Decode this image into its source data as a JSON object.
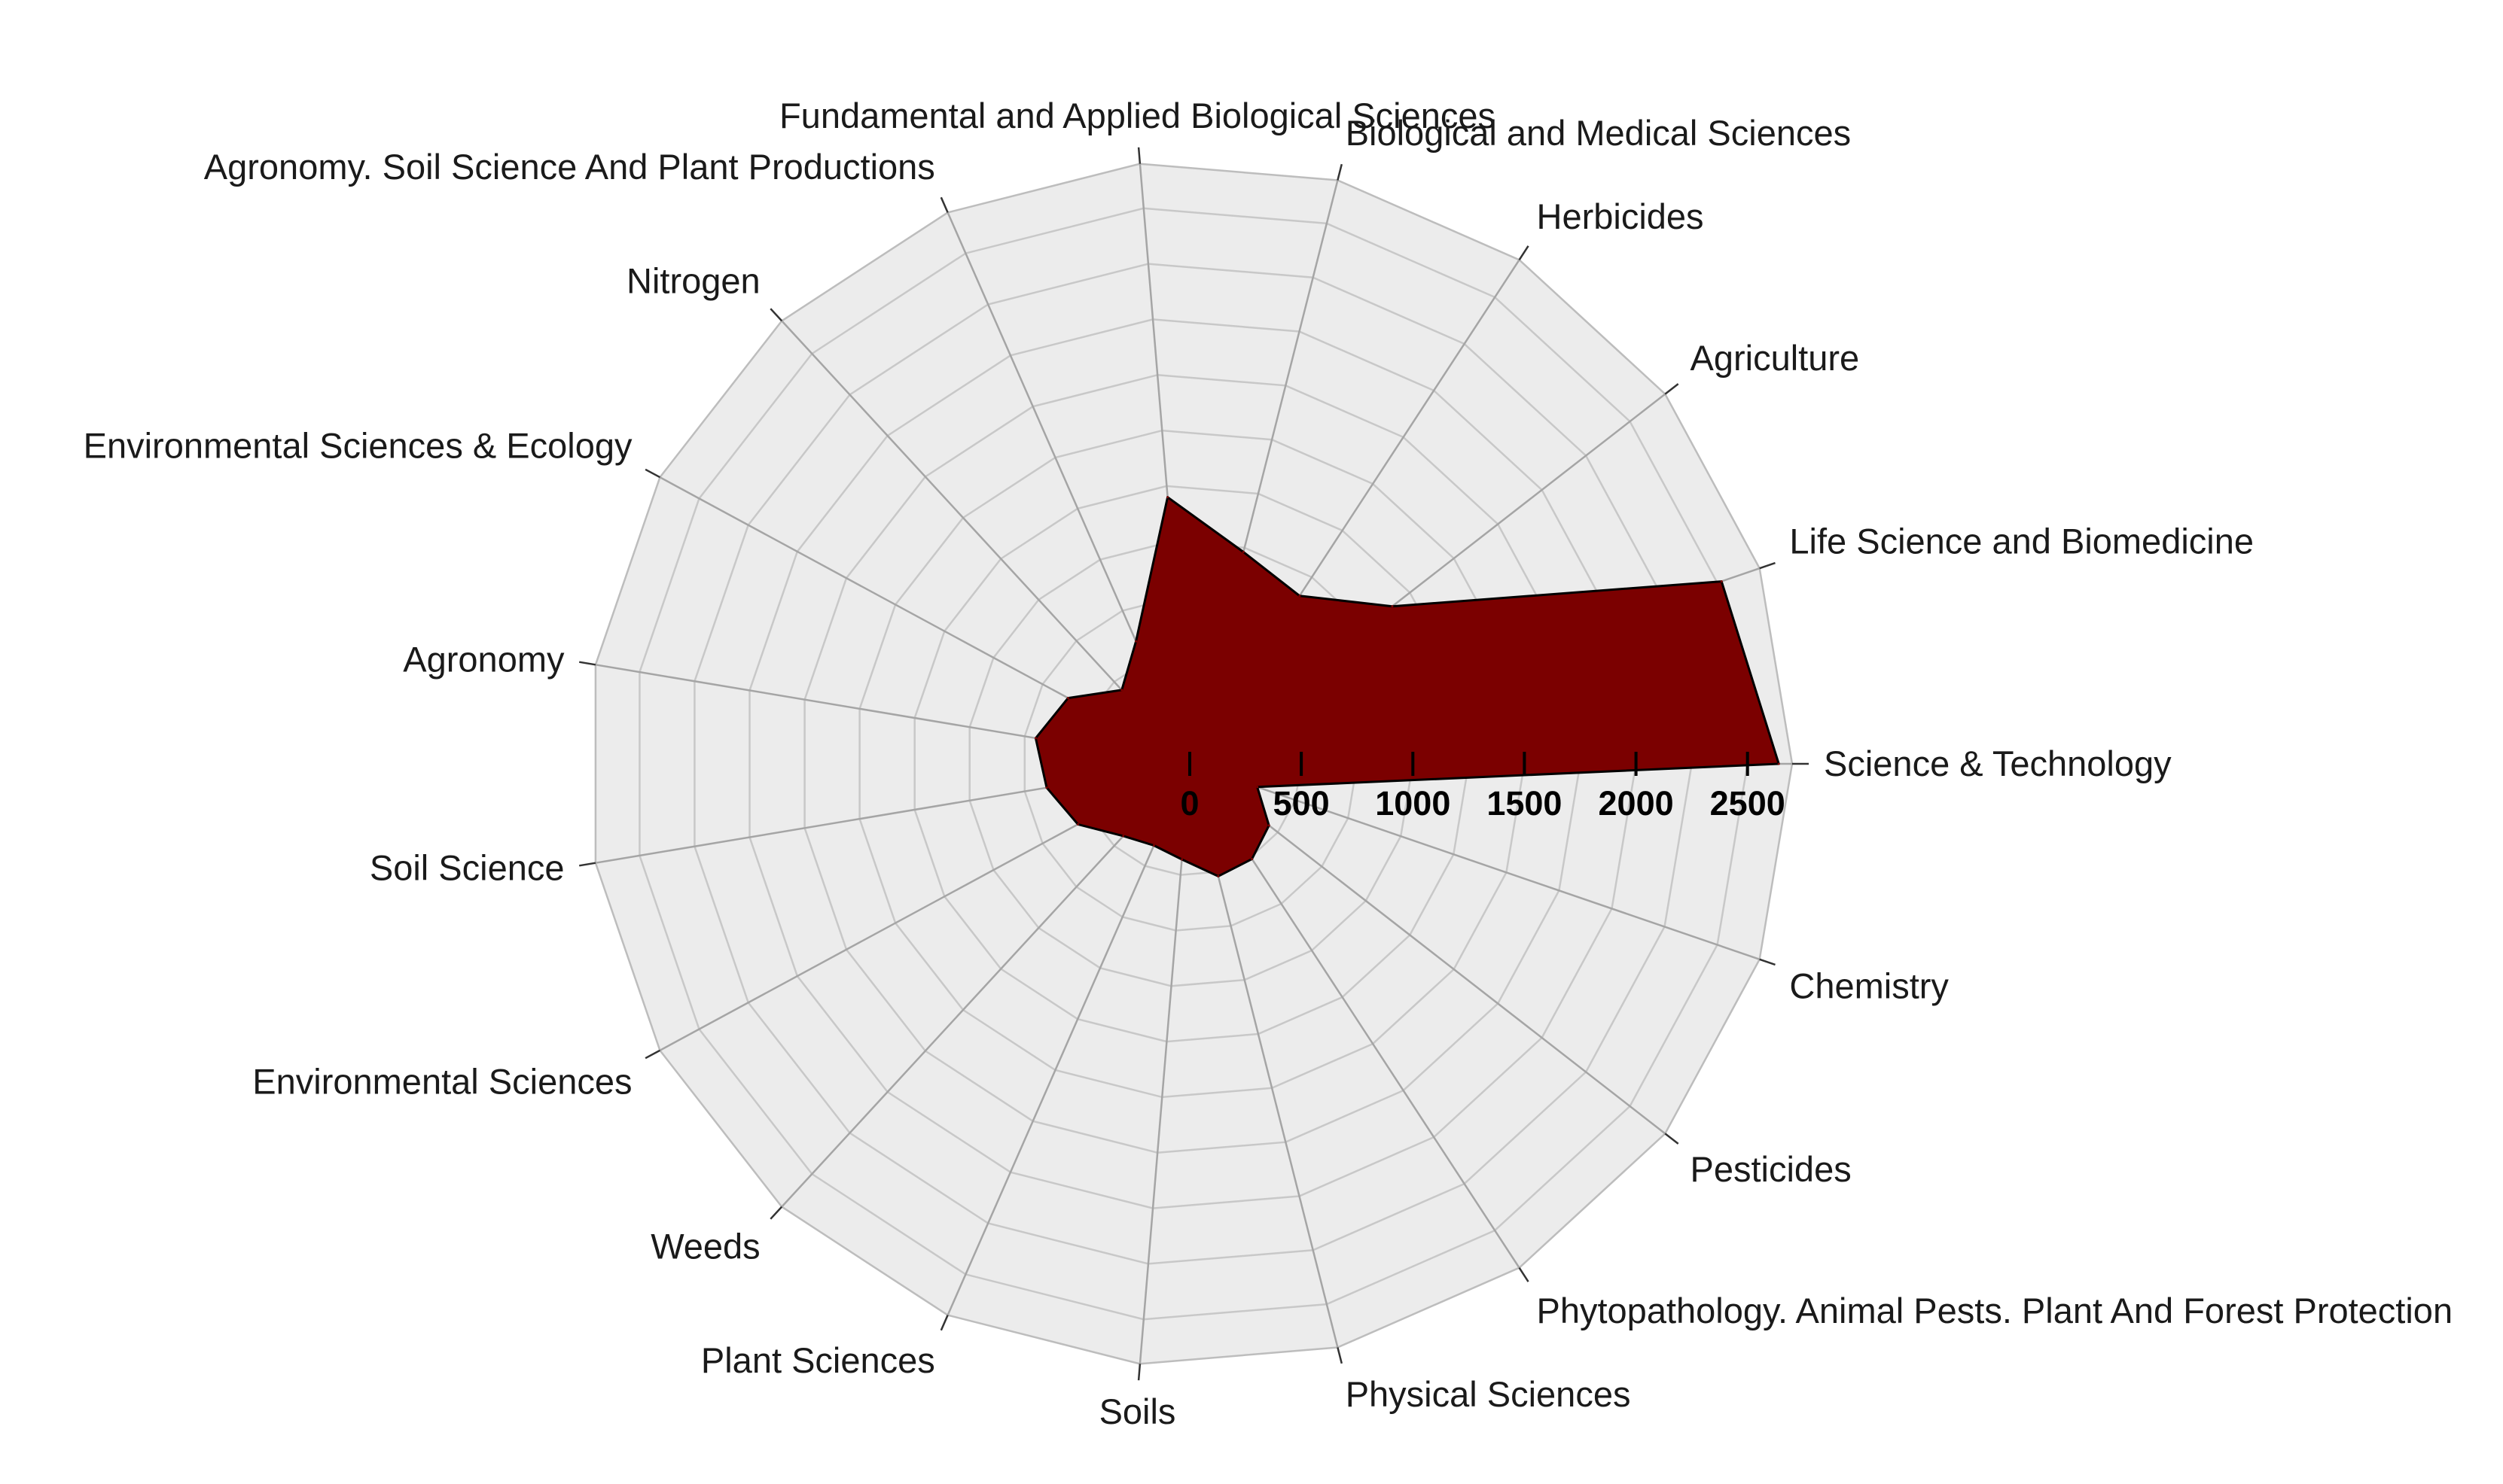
{
  "chart_data": {
    "type": "radar",
    "title": "",
    "categories": [
      "Science & Technology",
      "Life Science and Biomedicine",
      "Agriculture",
      "Herbicides",
      "Biological and Medical Sciences",
      "Fundamental and Applied Biological Sciences",
      "Agronomy. Soil Science And Plant Productions",
      "Nitrogen",
      "Environmental Sciences & Ecology",
      "Agronomy",
      "Soil Science",
      "Environmental Sciences",
      "Weeds",
      "Plant Sciences",
      "Soils",
      "Physical Sciences",
      "Phytopathology. Animal Pests. Plant And Forest Protection",
      "Pesticides",
      "Chemistry"
    ],
    "series": [
      {
        "values": [
          2640,
          2520,
          1150,
          900,
          980,
          1200,
          600,
          450,
          620,
          700,
          650,
          570,
          440,
          400,
          430,
          520,
          510,
          450,
          320
        ]
      }
    ],
    "radial_ticks": [
      "0",
      "500",
      "1000",
      "1500",
      "2000",
      "2500"
    ],
    "tick_values": [
      0,
      500,
      1000,
      1500,
      2000,
      2500
    ],
    "r_max": 2700,
    "grid": true,
    "colors": {
      "fill": "#7b0000",
      "outline": "#000000",
      "background": "#ececec",
      "grid": "#c8c8c8",
      "spoke": "#a5a5a5"
    }
  }
}
